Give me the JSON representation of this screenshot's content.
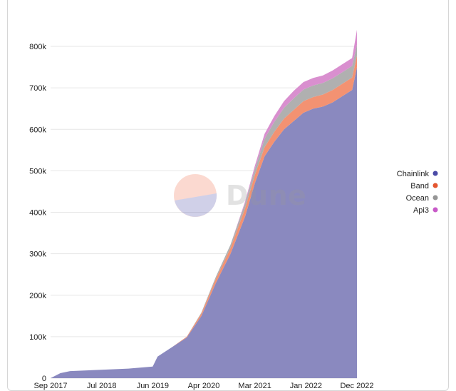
{
  "chart_data": {
    "type": "area",
    "stacked": true,
    "x_tick_labels": [
      "Sep 2017",
      "Jul 2018",
      "Jun 2019",
      "Apr 2020",
      "Mar 2021",
      "Jan 2022",
      "Dec 2022"
    ],
    "y_tick_labels": [
      "0",
      "100k",
      "200k",
      "300k",
      "400k",
      "500k",
      "600k",
      "700k",
      "800k"
    ],
    "ylim": [
      0,
      850000
    ],
    "grid": true,
    "legend_position": "right",
    "x": [
      "2017-09",
      "2017-11",
      "2018-01",
      "2018-07",
      "2019-01",
      "2019-06",
      "2019-07",
      "2019-10",
      "2020-01",
      "2020-04",
      "2020-07",
      "2020-10",
      "2021-01",
      "2021-03",
      "2021-05",
      "2021-07",
      "2021-09",
      "2021-11",
      "2022-01",
      "2022-03",
      "2022-05",
      "2022-07",
      "2022-09",
      "2022-11",
      "2022-12"
    ],
    "series": [
      {
        "name": "Chainlink",
        "color": "#8a89bf",
        "values": [
          0,
          12000,
          17000,
          20000,
          23000,
          28000,
          52000,
          75000,
          98000,
          150000,
          230000,
          300000,
          390000,
          470000,
          535000,
          570000,
          600000,
          620000,
          640000,
          650000,
          655000,
          665000,
          680000,
          695000,
          750000
        ]
      },
      {
        "name": "Band",
        "color": "#f39272",
        "values": [
          0,
          0,
          0,
          0,
          0,
          0,
          0,
          0,
          2000,
          6000,
          10000,
          14000,
          20000,
          20000,
          22000,
          24000,
          26000,
          27000,
          28000,
          28000,
          29000,
          30000,
          30000,
          30000,
          28000
        ]
      },
      {
        "name": "Ocean",
        "color": "#b0b0b0",
        "values": [
          0,
          0,
          0,
          0,
          0,
          0,
          0,
          0,
          0,
          2000,
          5000,
          8000,
          12000,
          14000,
          20000,
          24000,
          26000,
          28000,
          28000,
          28000,
          28000,
          28000,
          28000,
          28000,
          26000
        ]
      },
      {
        "name": "Api3",
        "color": "#d98fcf",
        "values": [
          0,
          0,
          0,
          0,
          0,
          0,
          0,
          0,
          0,
          0,
          0,
          0,
          4000,
          8000,
          12000,
          14000,
          16000,
          18000,
          18000,
          18000,
          18000,
          19000,
          19000,
          19000,
          36000
        ]
      }
    ],
    "legend": [
      {
        "name": "Chainlink",
        "dot_color": "#4b4ba6"
      },
      {
        "name": "Band",
        "dot_color": "#e4552f"
      },
      {
        "name": "Ocean",
        "dot_color": "#959595"
      },
      {
        "name": "Api3",
        "dot_color": "#c85ac8"
      }
    ]
  },
  "watermark": {
    "text": "Dune"
  }
}
